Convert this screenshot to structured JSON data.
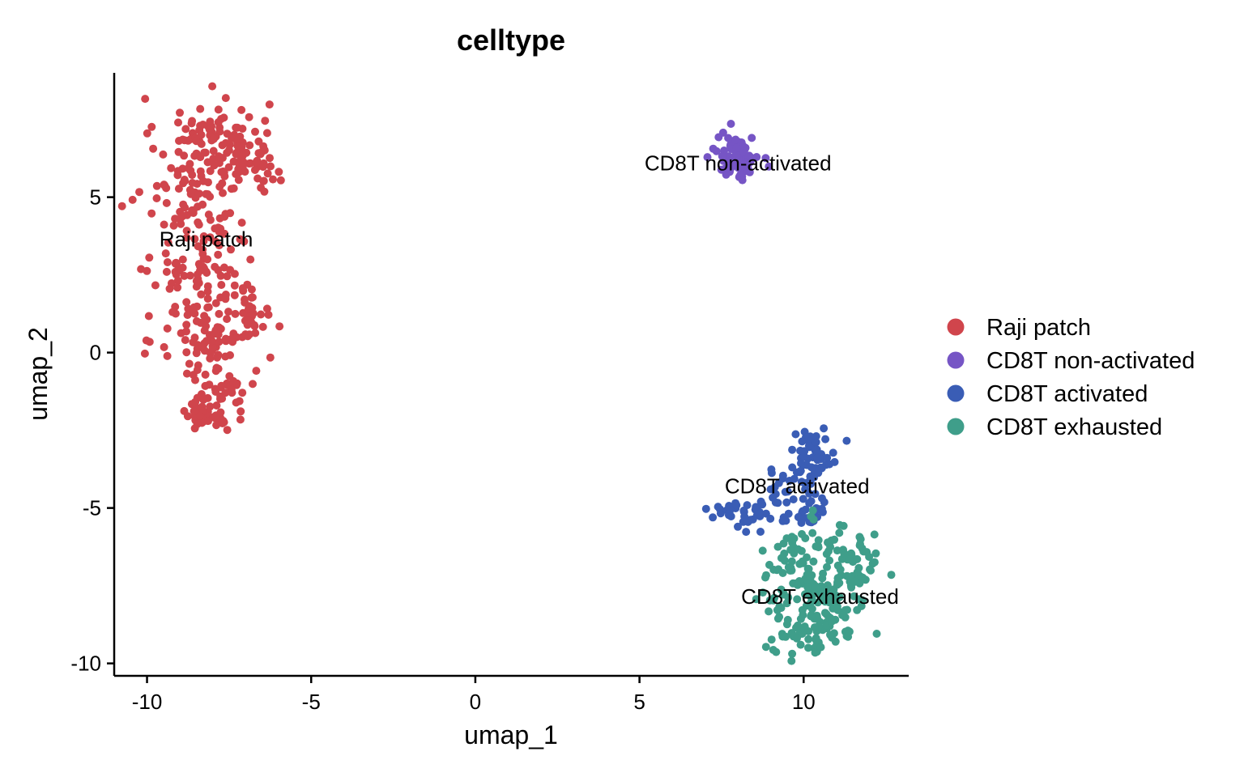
{
  "chart_data": {
    "type": "scatter",
    "title": "celltype",
    "xlabel": "umap_1",
    "ylabel": "umap_2",
    "xlim": [
      -11,
      13.2
    ],
    "ylim": [
      -10.4,
      9
    ],
    "x_ticks": [
      -10,
      -5,
      0,
      5,
      10
    ],
    "y_ticks": [
      -10,
      -5,
      0,
      5
    ],
    "x_tick_labels": [
      "-10",
      "-5",
      "0",
      "5",
      "10"
    ],
    "y_tick_labels": [
      "-10",
      "-5",
      "0",
      "5"
    ],
    "grid": false,
    "legend_position": "right",
    "series": [
      {
        "name": "Raji patch",
        "color": "#D0454C",
        "label_x": -8.2,
        "label_y": 3.65,
        "clusters": [
          {
            "cx": -8.0,
            "cy": 6.8,
            "sx": 0.85,
            "sy": 0.7,
            "n": 110
          },
          {
            "cx": -8.5,
            "cy": 5.0,
            "sx": 0.8,
            "sy": 0.7,
            "n": 70
          },
          {
            "cx": -8.2,
            "cy": 2.6,
            "sx": 0.8,
            "sy": 0.8,
            "n": 80
          },
          {
            "cx": -8.0,
            "cy": 0.6,
            "sx": 0.8,
            "sy": 0.75,
            "n": 80
          },
          {
            "cx": -7.9,
            "cy": -1.2,
            "sx": 0.6,
            "sy": 0.6,
            "n": 50
          },
          {
            "cx": -8.0,
            "cy": -2.0,
            "sx": 0.35,
            "sy": 0.25,
            "n": 25
          },
          {
            "cx": -6.6,
            "cy": 5.8,
            "sx": 0.35,
            "sy": 0.45,
            "n": 25
          },
          {
            "cx": -6.8,
            "cy": 1.3,
            "sx": 0.3,
            "sy": 0.4,
            "n": 20
          }
        ]
      },
      {
        "name": "CD8T non-activated",
        "color": "#7655C5",
        "label_x": 8.0,
        "label_y": 6.1,
        "clusters": [
          {
            "cx": 8.0,
            "cy": 6.3,
            "sx": 0.32,
            "sy": 0.35,
            "n": 85
          }
        ]
      },
      {
        "name": "CD8T activated",
        "color": "#3A5DB5",
        "label_x": 9.8,
        "label_y": -4.3,
        "clusters": [
          {
            "cx": 10.3,
            "cy": -3.3,
            "sx": 0.35,
            "sy": 0.45,
            "n": 55
          },
          {
            "cx": 9.6,
            "cy": -4.4,
            "sx": 0.45,
            "sy": 0.4,
            "n": 30
          },
          {
            "cx": 8.5,
            "cy": -5.3,
            "sx": 0.4,
            "sy": 0.25,
            "n": 25
          },
          {
            "cx": 7.5,
            "cy": -5.1,
            "sx": 0.3,
            "sy": 0.15,
            "n": 12
          },
          {
            "cx": 10.1,
            "cy": -5.2,
            "sx": 0.45,
            "sy": 0.25,
            "n": 18
          }
        ]
      },
      {
        "name": "CD8T exhausted",
        "color": "#3F9E8A",
        "label_x": 10.5,
        "label_y": -7.85,
        "clusters": [
          {
            "cx": 10.4,
            "cy": -7.4,
            "sx": 0.8,
            "sy": 0.9,
            "n": 190
          },
          {
            "cx": 10.4,
            "cy": -9.0,
            "sx": 0.7,
            "sy": 0.35,
            "n": 50
          },
          {
            "cx": 11.6,
            "cy": -6.8,
            "sx": 0.3,
            "sy": 0.5,
            "n": 30
          }
        ]
      }
    ]
  }
}
